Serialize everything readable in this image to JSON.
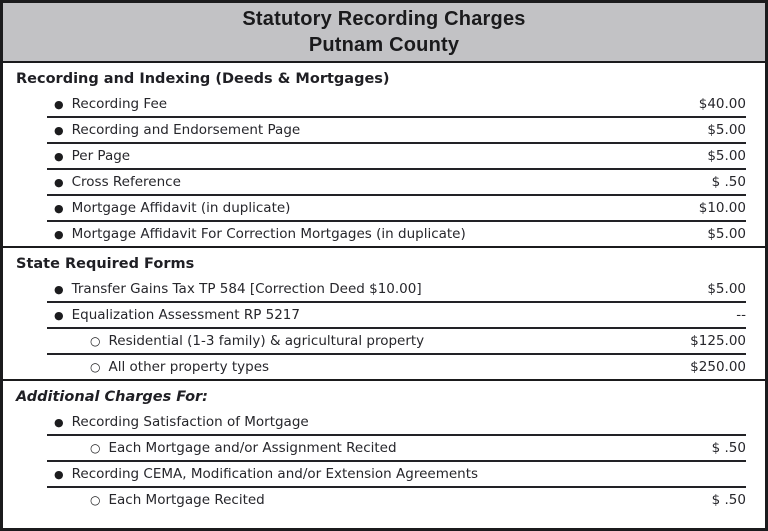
{
  "header": {
    "title_line1": "Statutory Recording Charges",
    "title_line2": "Putnam County"
  },
  "markers": {
    "bullet": "●",
    "sub": "○"
  },
  "colors": {
    "header_bg": "#c2c2c5",
    "border": "#1b1b1d",
    "text": "#26262b"
  },
  "sections": [
    {
      "heading": "Recording and Indexing (Deeds & Mortgages)",
      "rows": [
        {
          "label": "Recording Fee",
          "price": "$40.00"
        },
        {
          "label": "Recording and Endorsement Page",
          "price": "$5.00"
        },
        {
          "label": "Per Page",
          "price": "$5.00"
        },
        {
          "label": "Cross Reference",
          "price": "$ .50"
        },
        {
          "label": "Mortgage Affidavit (in duplicate)",
          "price": "$10.00"
        },
        {
          "label": "Mortgage Affidavit For Correction Mortgages (in duplicate)",
          "price": "$5.00"
        }
      ]
    },
    {
      "heading": "State Required Forms",
      "rows": [
        {
          "label": "Transfer Gains Tax TP 584 [Correction Deed $10.00]",
          "price": "$5.00"
        },
        {
          "label": "Equalization Assessment RP 5217",
          "price": "--"
        },
        {
          "label": "Residential (1-3 family) & agricultural property",
          "price": "$125.00"
        },
        {
          "label": "All other property types",
          "price": "$250.00"
        }
      ]
    },
    {
      "heading": "Additional Charges For:",
      "rows": [
        {
          "label": "Recording Satisfaction of Mortgage",
          "price": ""
        },
        {
          "label": "Each Mortgage and/or Assignment Recited",
          "price": "$ .50"
        },
        {
          "label": "Recording CEMA, Modification and/or Extension Agreements",
          "price": ""
        },
        {
          "label": "Each Mortgage Recited",
          "price": "$ .50"
        }
      ]
    }
  ]
}
